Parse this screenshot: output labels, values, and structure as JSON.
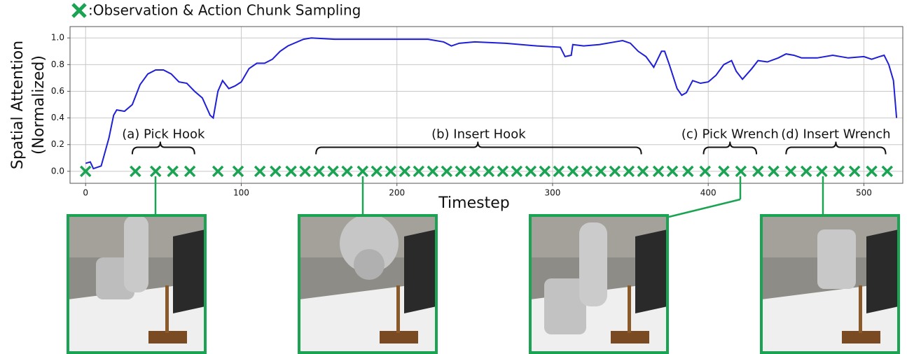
{
  "chart_data": {
    "type": "line",
    "xlabel": "Timestep",
    "ylabel": [
      "Spatial Attention",
      "(Normalized)"
    ],
    "xlim": [
      -10,
      525
    ],
    "ylim": [
      -0.09,
      1.085
    ],
    "xticks": [
      0,
      100,
      200,
      300,
      400,
      500
    ],
    "yticks": [
      {
        "value": 0,
        "label": "0.0"
      },
      {
        "value": 0.2,
        "label": "0.2"
      },
      {
        "value": 0.4,
        "label": "0.4"
      },
      {
        "value": 0.6,
        "label": "0.6"
      },
      {
        "value": 0.8,
        "label": "0.8"
      },
      {
        "value": 1.0,
        "label": "1.0"
      }
    ],
    "grid": true,
    "line": {
      "color": "#1f1fd6",
      "x": [
        0,
        3,
        5,
        10,
        15,
        18,
        20,
        25,
        30,
        35,
        40,
        45,
        50,
        55,
        60,
        65,
        70,
        75,
        80,
        82,
        85,
        88,
        92,
        96,
        100,
        105,
        110,
        115,
        120,
        125,
        130,
        140,
        145,
        160,
        180,
        200,
        220,
        230,
        235,
        240,
        250,
        270,
        290,
        305,
        308,
        312,
        313,
        320,
        330,
        340,
        345,
        350,
        355,
        360,
        365,
        370,
        372,
        375,
        380,
        383,
        386,
        390,
        395,
        400,
        405,
        410,
        415,
        418,
        422,
        428,
        432,
        438,
        445,
        450,
        455,
        460,
        470,
        480,
        490,
        500,
        505,
        510,
        513,
        516,
        519,
        521
      ],
      "values": [
        0.06,
        0.07,
        0.02,
        0.04,
        0.25,
        0.42,
        0.46,
        0.45,
        0.5,
        0.65,
        0.73,
        0.76,
        0.76,
        0.73,
        0.67,
        0.66,
        0.6,
        0.55,
        0.42,
        0.4,
        0.6,
        0.68,
        0.62,
        0.64,
        0.67,
        0.77,
        0.81,
        0.81,
        0.84,
        0.9,
        0.94,
        0.99,
        1.0,
        0.99,
        0.99,
        0.99,
        0.99,
        0.97,
        0.94,
        0.96,
        0.97,
        0.96,
        0.94,
        0.93,
        0.86,
        0.87,
        0.95,
        0.94,
        0.95,
        0.97,
        0.98,
        0.96,
        0.9,
        0.86,
        0.78,
        0.9,
        0.9,
        0.8,
        0.62,
        0.57,
        0.59,
        0.68,
        0.66,
        0.67,
        0.72,
        0.8,
        0.83,
        0.75,
        0.69,
        0.77,
        0.83,
        0.82,
        0.85,
        0.88,
        0.87,
        0.85,
        0.85,
        0.87,
        0.85,
        0.86,
        0.84,
        0.86,
        0.87,
        0.8,
        0.68,
        0.4
      ]
    },
    "markers": {
      "name": ":Observation & Action Chunk Sampling",
      "color": "#1aa352",
      "x": [
        0,
        32,
        45,
        56,
        67,
        85,
        98,
        112,
        122,
        132,
        141,
        150,
        159,
        168,
        178,
        187,
        196,
        205,
        214,
        223,
        232,
        241,
        250,
        259,
        268,
        277,
        286,
        295,
        304,
        313,
        322,
        331,
        340,
        349,
        358,
        368,
        377,
        387,
        398,
        410,
        421,
        432,
        442,
        453,
        463,
        473,
        484,
        494,
        505,
        515
      ],
      "values": [
        0,
        0,
        0,
        0,
        0,
        0,
        0,
        0,
        0,
        0,
        0,
        0,
        0,
        0,
        0,
        0,
        0,
        0,
        0,
        0,
        0,
        0,
        0,
        0,
        0,
        0,
        0,
        0,
        0,
        0,
        0,
        0,
        0,
        0,
        0,
        0,
        0,
        0,
        0,
        0,
        0,
        0,
        0,
        0,
        0,
        0,
        0,
        0,
        0,
        0
      ]
    },
    "annotations": [
      {
        "label": "(a) Pick Hook",
        "start": 30,
        "end": 70,
        "tip": 48
      },
      {
        "label": "(b) Insert Hook",
        "start": 148,
        "end": 357,
        "tip": 252
      },
      {
        "label": "(c) Pick Wrench",
        "start": 397,
        "end": 431,
        "tip": 414
      },
      {
        "label": "(d) Insert Wrench",
        "start": 450,
        "end": 514,
        "tip": 482
      }
    ]
  }
}
